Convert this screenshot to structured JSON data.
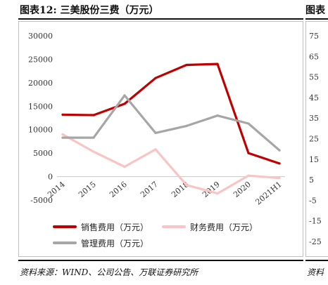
{
  "header": {
    "title": "图表12: 三美股份三费（万元）",
    "neighbor_title": "图表"
  },
  "footer": {
    "source": "资料来源：WIND、公司公告、万联证券研究所",
    "neighbor_source": "资料"
  },
  "neighbor_axis_ticks": [
    "75",
    "65",
    "55",
    "45",
    "35",
    "25",
    "15",
    "5",
    "-5",
    "-15",
    "-25"
  ],
  "chart_data": {
    "type": "line",
    "title": "",
    "xlabel": "",
    "ylabel": "",
    "categories": [
      "2014",
      "2015",
      "2016",
      "2017",
      "2018",
      "2019",
      "2020",
      "2021H1"
    ],
    "ylim": [
      -5000,
      30000
    ],
    "yticks": [
      -5000,
      0,
      5000,
      10000,
      15000,
      20000,
      25000,
      30000
    ],
    "grid": false,
    "legend_position": "bottom",
    "series": [
      {
        "name": "销售费用（万元）",
        "color": "#c00000",
        "values": [
          13200,
          13100,
          15500,
          21000,
          23800,
          24000,
          5000,
          2800
        ]
      },
      {
        "name": "财务费用（万元）",
        "color": "#f8c4c4",
        "values": [
          9000,
          5300,
          2100,
          5800,
          -1800,
          -3600,
          200,
          -300
        ]
      },
      {
        "name": "管理费用（万元）",
        "color": "#a6a6a6",
        "values": [
          8300,
          8300,
          17300,
          9300,
          10800,
          13000,
          11300,
          5600
        ]
      }
    ]
  }
}
